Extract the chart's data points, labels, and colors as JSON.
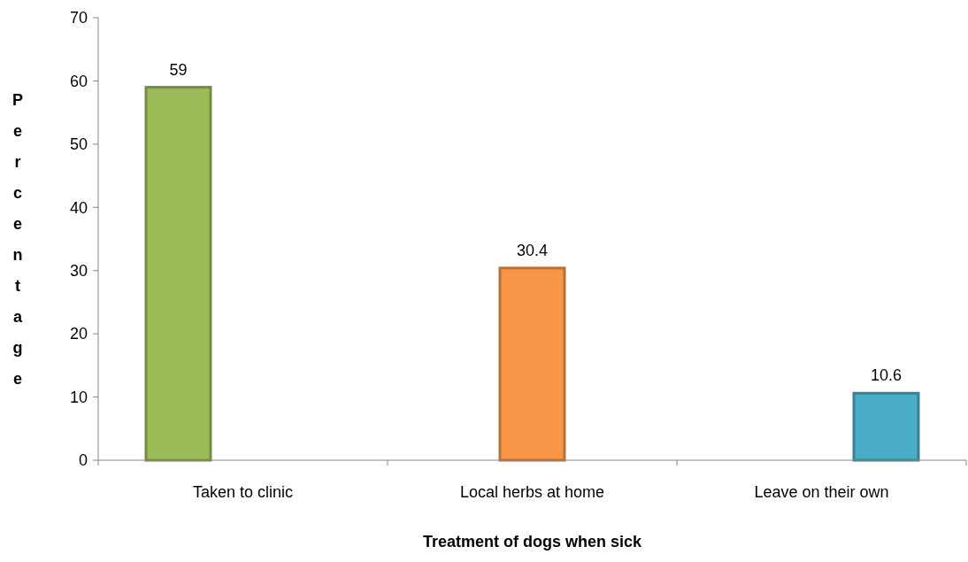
{
  "chart_data": {
    "type": "bar",
    "xlabel": "Treatment of dogs when sick",
    "ylabel": "Percentage",
    "categories": [
      "Taken to clinic",
      "Local herbs at home",
      "Leave on their own"
    ],
    "series": [
      {
        "color": "#9bbb59",
        "values": [
          59,
          null,
          null
        ]
      },
      {
        "color": "#f79646",
        "values": [
          null,
          30.4,
          null
        ]
      },
      {
        "color": "#4bacc6",
        "values": [
          null,
          null,
          10.6
        ]
      }
    ],
    "ylim": [
      0,
      70
    ],
    "yticks": [
      0,
      10,
      20,
      30,
      40,
      50,
      60,
      70
    ],
    "data_labels": true,
    "grid": false
  }
}
